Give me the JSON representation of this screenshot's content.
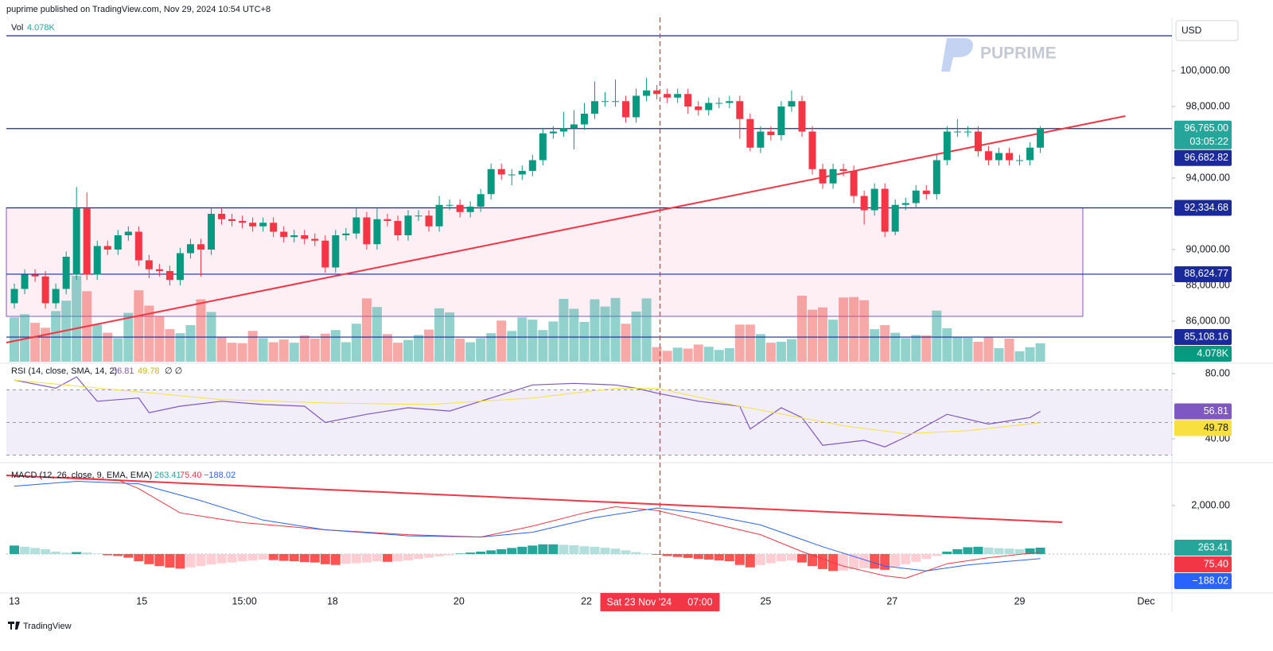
{
  "header": "puprime published on TradingView.com, Nov 29, 2024 10:54 UTC+8",
  "watermark": "PUPRIME",
  "footer": "TradingView",
  "currency": "USD",
  "crosshair": {
    "x": 62.3,
    "label": "Sat 23 Nov '24",
    "time": "07:00"
  },
  "chart_data": [
    {
      "type": "candlestick",
      "xlim": [
        -0.77,
        111.7
      ],
      "xticks": [
        {
          "value": 0,
          "label": "13"
        },
        {
          "value": 12.3,
          "label": "15"
        },
        {
          "value": 22.2,
          "label": "15:00"
        },
        {
          "value": 30.7,
          "label": "18"
        },
        {
          "value": 42.9,
          "label": "20"
        },
        {
          "value": 55.2,
          "label": "22"
        },
        {
          "value": 72.5,
          "label": "25"
        },
        {
          "value": 84.7,
          "label": "27"
        },
        {
          "value": 97,
          "label": "29"
        },
        {
          "value": 109.2,
          "label": "Dec"
        }
      ],
      "ylim": [
        83733,
        102889
      ],
      "yticks": [
        {
          "value": 100000,
          "label": "100,000.00"
        },
        {
          "value": 98000,
          "label": "98,000.00"
        },
        {
          "value": 94000,
          "label": "94,000.00"
        },
        {
          "value": 90000,
          "label": "90,000.00"
        },
        {
          "value": 88000,
          "label": "88,000.00"
        },
        {
          "value": 86000,
          "label": "86,000.00"
        }
      ],
      "up_color": "#089981",
      "down_color": "#f23645",
      "open": [
        87000,
        87800,
        88600,
        88500,
        87000,
        87800,
        88600,
        92300,
        88600,
        90200,
        90000,
        90800,
        91000,
        89400,
        88900,
        88800,
        88300,
        89800,
        90300,
        90000,
        92000,
        91700,
        91600,
        91500,
        91300,
        91500,
        91000,
        90700,
        90800,
        90600,
        90500,
        89000,
        90800,
        90900,
        91800,
        90300,
        91700,
        91600,
        90800,
        91900,
        91900,
        91300,
        92500,
        92500,
        92100,
        92400,
        93100,
        94500,
        94200,
        94200,
        94400,
        95000,
        96500,
        96600,
        96800,
        97000,
        97600,
        98300,
        98300,
        98300,
        97400,
        98600,
        98900,
        98700,
        98500,
        98700,
        98000,
        97800,
        98200,
        98200,
        98300,
        97300,
        95700,
        96600,
        96400,
        98000,
        98300,
        96600,
        94500,
        93700,
        94500,
        94400,
        93000,
        92200,
        93400,
        91000,
        92500,
        92600,
        93300,
        93100,
        95000,
        96600,
        96600,
        96600,
        95500,
        95000,
        95400,
        95000,
        95000,
        95700
      ],
      "high": [
        88100,
        88900,
        88900,
        88800,
        88100,
        89900,
        93500,
        93200,
        90500,
        90500,
        91100,
        91300,
        91300,
        89700,
        89200,
        89100,
        90100,
        90600,
        90600,
        92300,
        92300,
        92000,
        91900,
        91800,
        91800,
        91800,
        91300,
        91100,
        91100,
        90900,
        90800,
        91100,
        91200,
        92300,
        92100,
        92300,
        92000,
        91900,
        92200,
        92200,
        92200,
        93000,
        92800,
        92800,
        92700,
        93400,
        94800,
        94800,
        94500,
        94700,
        95300,
        96800,
        96900,
        97700,
        97800,
        98200,
        99400,
        98800,
        99500,
        98600,
        99000,
        99600,
        99200,
        99000,
        99000,
        99000,
        98300,
        98500,
        98500,
        98600,
        98600,
        97600,
        96900,
        96900,
        98300,
        98900,
        98600,
        96900,
        94800,
        94800,
        94800,
        94700,
        93300,
        93700,
        93700,
        92800,
        92900,
        93600,
        93600,
        95300,
        96900,
        97300,
        96900,
        96900,
        95800,
        95700,
        95700,
        95300,
        96000,
        96900
      ],
      "low": [
        86700,
        87500,
        88200,
        86700,
        86700,
        87500,
        88300,
        88300,
        88300,
        89700,
        89700,
        90500,
        89100,
        88400,
        88500,
        88000,
        88000,
        89500,
        88500,
        89700,
        91400,
        91300,
        91200,
        91000,
        91000,
        90700,
        90400,
        90400,
        90300,
        90200,
        88700,
        88700,
        90500,
        90600,
        90000,
        90000,
        91300,
        90500,
        90500,
        91600,
        91000,
        91000,
        92200,
        91800,
        91800,
        92100,
        92800,
        93900,
        93600,
        93900,
        94100,
        94700,
        96200,
        96300,
        95600,
        96700,
        97300,
        98000,
        98000,
        97100,
        97100,
        98300,
        98400,
        98200,
        98200,
        97600,
        97500,
        97500,
        97900,
        97900,
        96200,
        95500,
        95400,
        96100,
        96100,
        97700,
        96300,
        94200,
        93400,
        93400,
        94100,
        92600,
        91400,
        91900,
        90700,
        90800,
        92200,
        92300,
        92800,
        92800,
        94700,
        96300,
        96300,
        95200,
        94700,
        94700,
        94700,
        94700,
        94700,
        95400
      ],
      "close": [
        87800,
        88600,
        88500,
        87000,
        87800,
        89600,
        92300,
        88600,
        90200,
        90000,
        90800,
        91000,
        89400,
        88900,
        88800,
        88300,
        89800,
        90300,
        90000,
        92000,
        91700,
        91600,
        91500,
        91300,
        91500,
        91000,
        90700,
        90800,
        90600,
        90500,
        89000,
        90800,
        90900,
        91800,
        90300,
        91700,
        91600,
        90800,
        91900,
        91900,
        91300,
        92500,
        92500,
        92100,
        92400,
        93100,
        94500,
        94200,
        94200,
        94400,
        95000,
        96500,
        96600,
        96800,
        97000,
        97600,
        98300,
        98300,
        98300,
        97400,
        98600,
        98900,
        98700,
        98500,
        98700,
        98000,
        97800,
        98200,
        98200,
        98300,
        97300,
        95700,
        96600,
        96400,
        98000,
        98300,
        96600,
        94500,
        93700,
        94500,
        94400,
        93000,
        92200,
        93400,
        91000,
        92500,
        92600,
        93300,
        93100,
        95000,
        96600,
        96600,
        96600,
        95500,
        95000,
        95400,
        95000,
        95000,
        95700,
        96765
      ],
      "volume": {
        "name": "Vol",
        "last_label": "4.078K",
        "values": [
          9800,
          10500,
          8600,
          7500,
          11200,
          13500,
          19000,
          15600,
          8200,
          6400,
          5200,
          10800,
          15800,
          12400,
          10100,
          7200,
          6300,
          8100,
          13800,
          11000,
          5400,
          4200,
          4100,
          6800,
          5200,
          4300,
          4900,
          4200,
          5800,
          5100,
          6200,
          7000,
          4300,
          8400,
          14000,
          12100,
          6100,
          4200,
          4800,
          5900,
          7100,
          11800,
          10900,
          5100,
          4300,
          5200,
          6300,
          9100,
          6800,
          9800,
          9300,
          7000,
          8900,
          13900,
          11700,
          8800,
          13800,
          12200,
          14100,
          8400,
          11100,
          14000,
          3200,
          2400,
          3100,
          2900,
          3800,
          3300,
          2600,
          3000,
          8200,
          8200,
          6100,
          4200,
          4400,
          5000,
          14600,
          11500,
          12000,
          9300,
          14200,
          14300,
          13600,
          7200,
          8100,
          6400,
          5200,
          5900,
          5800,
          11300,
          7400,
          5400,
          5300,
          4400,
          5400,
          3000,
          5100,
          2300,
          3200,
          4078
        ]
      },
      "levels": [
        {
          "value": 101956,
          "line": true,
          "color": "#1a2a9b"
        },
        {
          "value": 96765,
          "label": "96,765.00",
          "countdown": "03:05:22",
          "line": true,
          "color": "#26a69a"
        },
        {
          "value": 96682.82,
          "label": "96,682.82",
          "line": false,
          "color": "#1a2a9b"
        },
        {
          "value": 92334.68,
          "label": "92,334.68",
          "line": true,
          "color": "#1a2a9b"
        },
        {
          "value": 88624.77,
          "label": "88,624.77",
          "line": true,
          "color": "#1a2a9b"
        },
        {
          "value": 85108.16,
          "label": "85,108.16",
          "line": true,
          "color": "#1a2a9b"
        }
      ],
      "box": {
        "x": [
          -0.77,
          103.1
        ],
        "y": [
          86267,
          92334.68
        ],
        "color": "#7e57c2"
      },
      "trendline": {
        "x": [
          -0.77,
          107.2
        ],
        "y": [
          84800,
          97467
        ],
        "color": "#f23645"
      }
    },
    {
      "type": "line",
      "title": "RSI (14, close, SMA, 14, 2)",
      "na_marks": "∅ ∅",
      "ylim": [
        26.34,
        85.85
      ],
      "yticks": [
        {
          "value": 80,
          "label": "80.00"
        },
        {
          "value": 40,
          "label": "40.00"
        }
      ],
      "bands": [
        30,
        70
      ],
      "midline": 50,
      "series": [
        {
          "color": "#7e57c2",
          "last_label": "56.81",
          "label_text": "#ffffff",
          "x": [
            0,
            4,
            6,
            8,
            12,
            13,
            16,
            20,
            24,
            28,
            30,
            34,
            38,
            42,
            46,
            50,
            54,
            58,
            60,
            62,
            66,
            70,
            71,
            74,
            76,
            78,
            82,
            84,
            86,
            90,
            94,
            98,
            99
          ],
          "values": [
            76,
            71,
            78,
            63,
            65,
            56,
            60,
            63,
            61,
            60,
            50,
            55,
            59,
            57,
            65,
            73,
            74,
            73,
            71,
            68,
            63,
            60,
            46,
            59,
            53,
            36,
            39,
            35,
            41,
            55,
            49,
            53,
            56.81
          ]
        },
        {
          "color": "#f7e040",
          "last_label": "49.78",
          "label_text": "#131722",
          "x": [
            0,
            10,
            20,
            30,
            40,
            50,
            58,
            62,
            70,
            80,
            86,
            92,
            99
          ],
          "values": [
            76,
            70,
            64,
            62,
            61,
            65,
            71,
            71,
            60,
            48,
            43,
            45,
            49.78
          ]
        }
      ]
    },
    {
      "type": "macd",
      "title": "MACD (12, 26, close, 9, EMA, EMA)",
      "ylim": [
        -1574,
        3738
      ],
      "yticks": [
        {
          "value": 2000,
          "label": "2,000.00"
        }
      ],
      "histogram": {
        "last_label": "263.41",
        "color": "#26a69a",
        "values": [
          350,
          300,
          250,
          200,
          100,
          50,
          80,
          60,
          20,
          -50,
          -80,
          -150,
          -300,
          -420,
          -500,
          -560,
          -600,
          -550,
          -500,
          -430,
          -380,
          -350,
          -300,
          -260,
          -230,
          -250,
          -280,
          -300,
          -330,
          -350,
          -420,
          -450,
          -400,
          -380,
          -350,
          -300,
          -320,
          -300,
          -260,
          -200,
          -150,
          -100,
          -50,
          20,
          60,
          100,
          150,
          200,
          250,
          300,
          350,
          400,
          400,
          380,
          360,
          320,
          300,
          260,
          220,
          150,
          80,
          20,
          -30,
          -80,
          -120,
          -160,
          -200,
          -230,
          -260,
          -300,
          -450,
          -550,
          -450,
          -380,
          -300,
          -260,
          -350,
          -500,
          -620,
          -700,
          -680,
          -620,
          -580,
          -600,
          -650,
          -520,
          -420,
          -320,
          -200,
          -80,
          100,
          200,
          280,
          300,
          270,
          240,
          220,
          200,
          230,
          263.41
        ]
      },
      "series": [
        {
          "color": "#f23645",
          "last_label": "75.40",
          "x": [
            0,
            6,
            10,
            12,
            16,
            22,
            30,
            38,
            45,
            50,
            55,
            58,
            62,
            66,
            72,
            76,
            80,
            84,
            86,
            90,
            94,
            99
          ],
          "values": [
            3200,
            3150,
            3050,
            2700,
            1700,
            1300,
            1000,
            800,
            700,
            1150,
            1700,
            1950,
            1800,
            1400,
            800,
            100,
            -500,
            -900,
            -1000,
            -400,
            -150,
            75.4
          ]
        },
        {
          "color": "#2962ff",
          "last_label": "−188.02",
          "x": [
            0,
            6,
            12,
            18,
            24,
            30,
            38,
            45,
            50,
            56,
            62,
            66,
            72,
            78,
            84,
            88,
            92,
            99
          ],
          "values": [
            2800,
            3000,
            2900,
            2200,
            1400,
            1000,
            750,
            700,
            900,
            1500,
            1900,
            1700,
            1200,
            300,
            -500,
            -700,
            -450,
            -188.02
          ]
        }
      ],
      "trendline": {
        "x": [
          -0.77,
          101.1
        ],
        "y": [
          3246,
          1311
        ],
        "color": "#f23645"
      }
    }
  ]
}
